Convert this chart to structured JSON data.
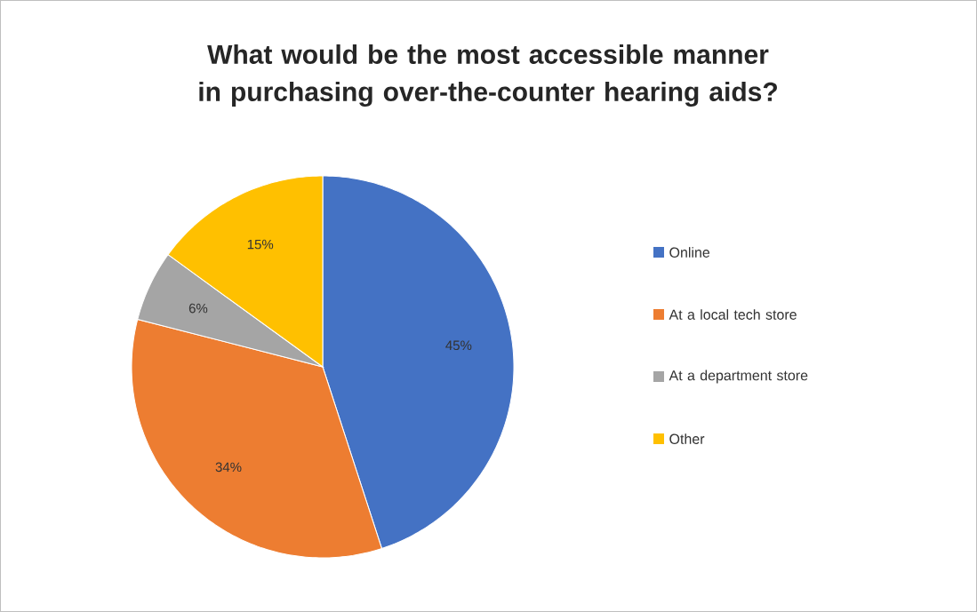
{
  "chart_data": {
    "type": "pie",
    "title": "What would be the most accessible manner in purchasing over-the-counter hearing aids?",
    "categories": [
      "Online",
      "At a local tech store",
      "At a department store",
      "Other"
    ],
    "values": [
      45,
      34,
      6,
      15
    ],
    "colors": [
      "#4472c4",
      "#ed7d31",
      "#a5a5a5",
      "#ffc000"
    ],
    "value_labels": [
      "45%",
      "34%",
      "6%",
      "15%"
    ],
    "legend": "right"
  }
}
